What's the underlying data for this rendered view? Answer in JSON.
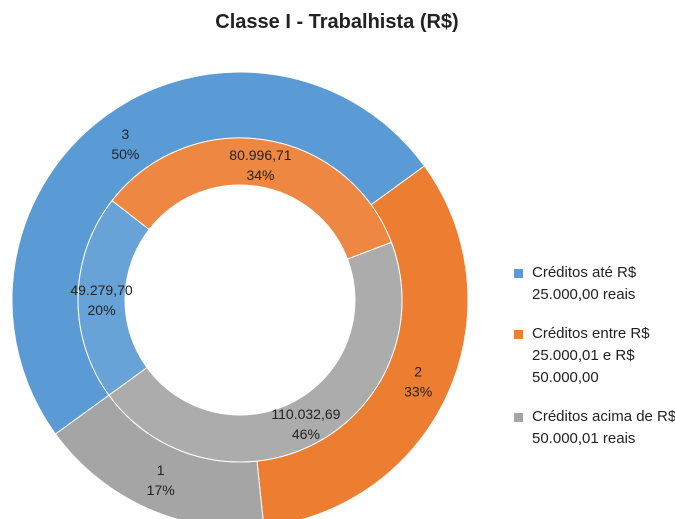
{
  "chart_data": {
    "type": "donut",
    "title": "Classe I - Trabalhista (R$)",
    "categories": [
      "Créditos até R$ 25.000,00 reais",
      "Créditos entre R$ 25.000,01 e R$ 50.000,00",
      "Créditos acima de R$ 50.000,01 reais"
    ],
    "colors": [
      "#5b9bd5",
      "#ed7d31",
      "#a5a5a5"
    ],
    "legend": "right",
    "rings": [
      {
        "values": [
          3,
          2,
          1
        ],
        "percent_labels": [
          "50%",
          "33%",
          "17%"
        ]
      },
      {
        "values": [
          49279.7,
          80996.71,
          110032.69
        ],
        "value_labels": [
          "49.279,70",
          "80.996,71",
          "110.032,69"
        ],
        "percent_labels": [
          "20%",
          "34%",
          "46%"
        ]
      }
    ]
  }
}
